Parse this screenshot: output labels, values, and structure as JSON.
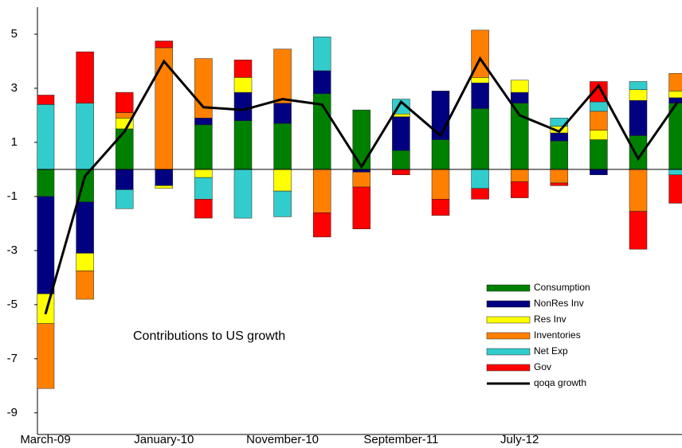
{
  "chart_data": {
    "type": "bar",
    "stacked": true,
    "annotation": "Contributions to US growth",
    "categories": [
      "March-09",
      null,
      null,
      "January-10",
      null,
      null,
      "November-10",
      null,
      null,
      "September-11",
      null,
      null,
      "July-12",
      null,
      null,
      null,
      null
    ],
    "series": [
      {
        "name": "Consumption",
        "color": "#008000",
        "values": [
          -1.0,
          -1.2,
          1.5,
          0,
          1.65,
          1.8,
          1.7,
          2.8,
          2.2,
          0.7,
          1.1,
          2.25,
          2.45,
          1.05,
          1.1,
          1.25,
          2.45
        ]
      },
      {
        "name": "NonRes Inv",
        "color": "#000080",
        "values": [
          -3.6,
          -1.9,
          -0.75,
          -0.6,
          0.25,
          1.05,
          0.75,
          0.85,
          -0.1,
          1.25,
          1.8,
          0.95,
          0.4,
          0.3,
          -0.2,
          1.3,
          0.2
        ]
      },
      {
        "name": "Res Inv",
        "color": "#ffff00",
        "values": [
          -1.1,
          -0.65,
          0.4,
          -0.1,
          -0.3,
          0.55,
          -0.8,
          0,
          0,
          0.1,
          0,
          0.2,
          0.45,
          0.25,
          0.35,
          0.4,
          0.25
        ]
      },
      {
        "name": "Inventories",
        "color": "#ff8000",
        "values": [
          -2.4,
          -1.05,
          0.2,
          4.5,
          2.2,
          0,
          2.0,
          -1.6,
          -0.55,
          0,
          -1.1,
          1.75,
          -0.45,
          -0.5,
          0.7,
          -1.55,
          0.65
        ]
      },
      {
        "name": "Net Exp",
        "color": "#33cccc",
        "values": [
          2.4,
          2.45,
          -0.7,
          0,
          -0.8,
          -1.8,
          -0.95,
          1.25,
          0,
          0.55,
          0,
          -0.7,
          0,
          0.3,
          0.35,
          0.3,
          -0.2
        ]
      },
      {
        "name": "Gov",
        "color": "#ff0000",
        "values": [
          0.35,
          1.9,
          0.75,
          0.25,
          -0.7,
          0.65,
          0,
          -0.9,
          -1.55,
          -0.2,
          -0.6,
          -0.4,
          -0.6,
          -0.1,
          0.75,
          -1.4,
          -1.05
        ]
      },
      {
        "name": "qoqa growth",
        "color": "#000000",
        "type": "line",
        "values": [
          -5.35,
          -0.25,
          1.4,
          4.0,
          2.3,
          2.2,
          2.6,
          2.4,
          0.1,
          2.5,
          1.25,
          4.1,
          2.0,
          1.4,
          3.1,
          0.4,
          2.5
        ]
      }
    ],
    "ylim": [
      -9.8,
      6
    ],
    "yticks": [
      -9,
      -7,
      -5,
      -3,
      -1,
      1,
      3,
      5
    ]
  }
}
